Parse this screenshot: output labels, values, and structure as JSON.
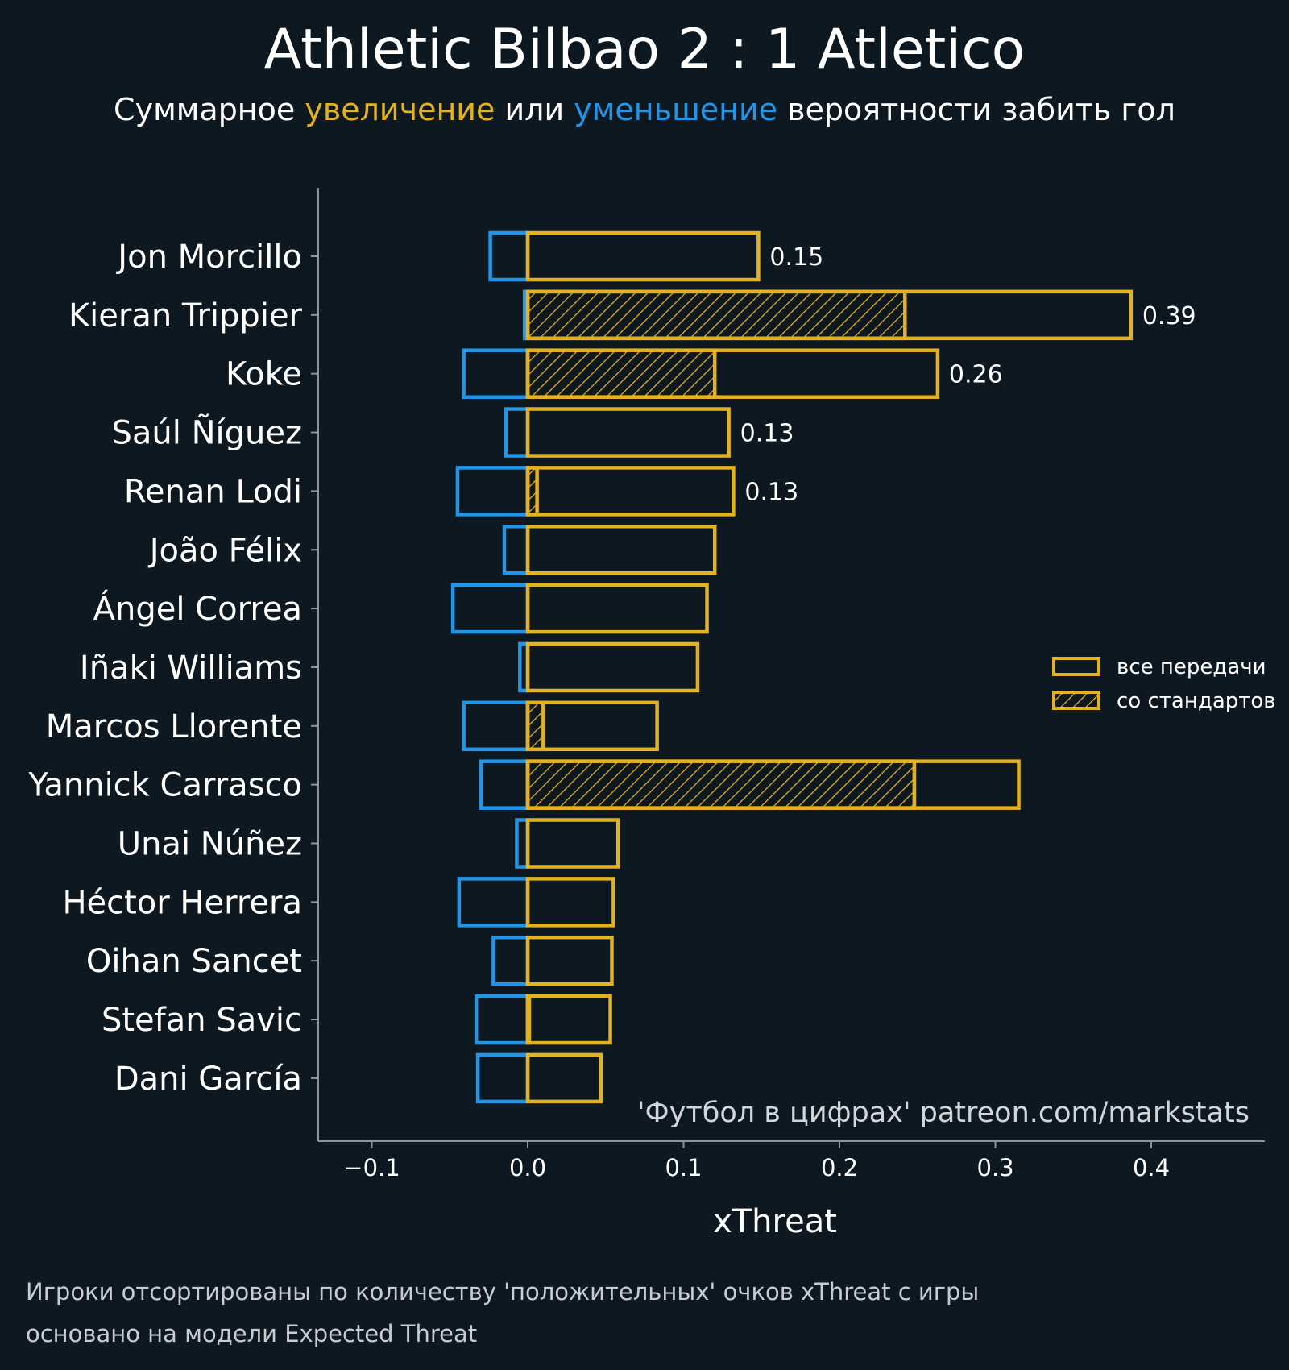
{
  "chart_data": {
    "type": "bar",
    "orientation": "horizontal",
    "title": "Athletic Bilbao 2 : 1 Atletico",
    "subtitle": {
      "prefix": "Суммарное ",
      "increase_word": "увеличение",
      "middle": " или ",
      "decrease_word": "уменьшение",
      "suffix": " вероятности забить гол"
    },
    "xlabel": "xThreat",
    "xlim": [
      -0.135,
      0.475
    ],
    "xticks": [
      -0.1,
      0.0,
      0.1,
      0.2,
      0.3,
      0.4
    ],
    "xtick_labels": [
      "−0.1",
      "0.0",
      "0.1",
      "0.2",
      "0.3",
      "0.4"
    ],
    "grid": false,
    "legend_position": "right",
    "categories": [
      "Jon Morcillo",
      "Kieran Trippier",
      "Koke",
      "Saúl Ñíguez",
      "Renan Lodi",
      "João Félix",
      "Ángel Correa",
      "Iñaki Williams",
      "Marcos Llorente",
      "Yannick Carrasco",
      "Unai Núñez",
      "Héctor Herrera",
      "Oihan Sancet",
      "Stefan Savic",
      "Dani García"
    ],
    "series": [
      {
        "name": "все передачи",
        "role": "positive_total",
        "values": [
          0.148,
          0.387,
          0.263,
          0.129,
          0.132,
          0.12,
          0.115,
          0.109,
          0.083,
          0.315,
          0.058,
          0.055,
          0.054,
          0.053,
          0.047
        ]
      },
      {
        "name": "со стандартов",
        "role": "positive_set_pieces",
        "values": [
          0.0,
          0.242,
          0.12,
          0.0,
          0.006,
          0.0,
          0.0,
          0.0,
          0.01,
          0.248,
          0.0,
          0.0,
          0.0,
          0.001,
          0.0
        ]
      },
      {
        "role": "negative_total",
        "values": [
          -0.024,
          -0.002,
          -0.041,
          -0.014,
          -0.045,
          -0.015,
          -0.048,
          -0.005,
          -0.041,
          -0.03,
          -0.007,
          -0.044,
          -0.022,
          -0.033,
          -0.032
        ]
      }
    ],
    "value_labels": [
      "0.15",
      "0.39",
      "0.26",
      "0.13",
      "0.13",
      "",
      "",
      "",
      "",
      "",
      "",
      "",
      "",
      "",
      ""
    ],
    "annotation": "'Футбол в цифрах' patreon.com/markstats",
    "colors": {
      "background": "#0e1820",
      "positive": "#e3b221",
      "negative": "#2196e8",
      "axis": "#8a949c",
      "text": "#ffffff",
      "annotation": "#d2d6da"
    }
  },
  "footnotes": [
    "Игроки отсортированы по количеству 'положительных' очков xThreat с игры",
    "основано на модели Expected Threat"
  ]
}
